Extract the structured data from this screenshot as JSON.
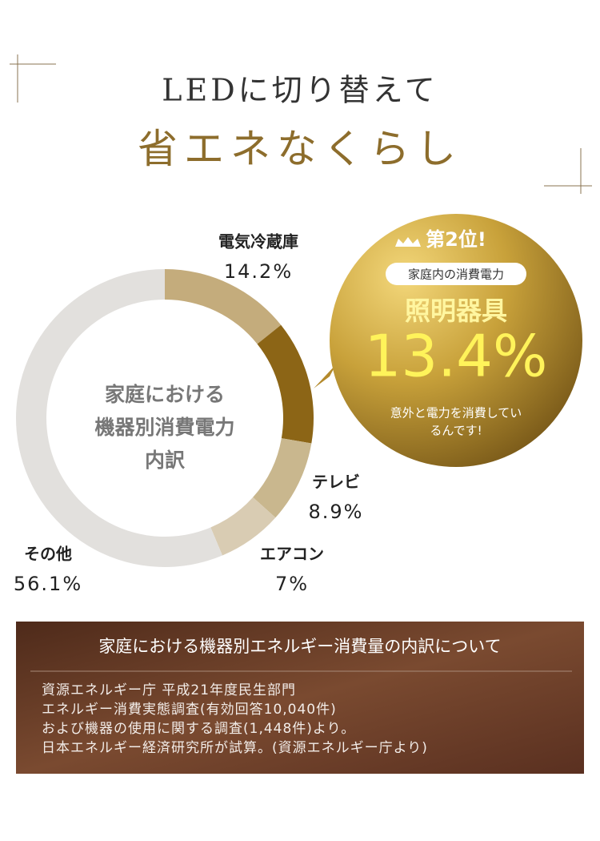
{
  "header": {
    "title_line1": "LEDに切り替えて",
    "title_line2": "省エネなくらし"
  },
  "chart_data": {
    "type": "donut",
    "center_label": [
      "家庭における",
      "機器別消費電力",
      "内訳"
    ],
    "categories": [
      "電気冷蔵庫",
      "照明器具",
      "テレビ",
      "エアコン",
      "その他"
    ],
    "values": [
      14.2,
      13.4,
      8.9,
      7,
      56.1
    ],
    "value_labels": [
      "14.2%",
      "13.4%",
      "8.9%",
      "7%",
      "56.1%"
    ],
    "colors": [
      "#c4ac7c",
      "#8c6516",
      "#c9b78e",
      "#d9ccb3",
      "#e2e0dd"
    ]
  },
  "callout": {
    "badge": "第2位!",
    "subtitle": "家庭内の消費電力",
    "note": [
      "意外と電力を消費してい",
      "るんです!"
    ]
  },
  "source": {
    "heading": "家庭における機器別エネルギー消費量の内訳について",
    "lines": [
      "資源エネルギー庁 平成21年度民生部門",
      "エネルギー消費実態調査(有効回答10,040件)",
      "および機器の使用に関する調査(1,448件)より。",
      "日本エネルギー経済研究所が試算。(資源エネルギー庁より)"
    ]
  }
}
